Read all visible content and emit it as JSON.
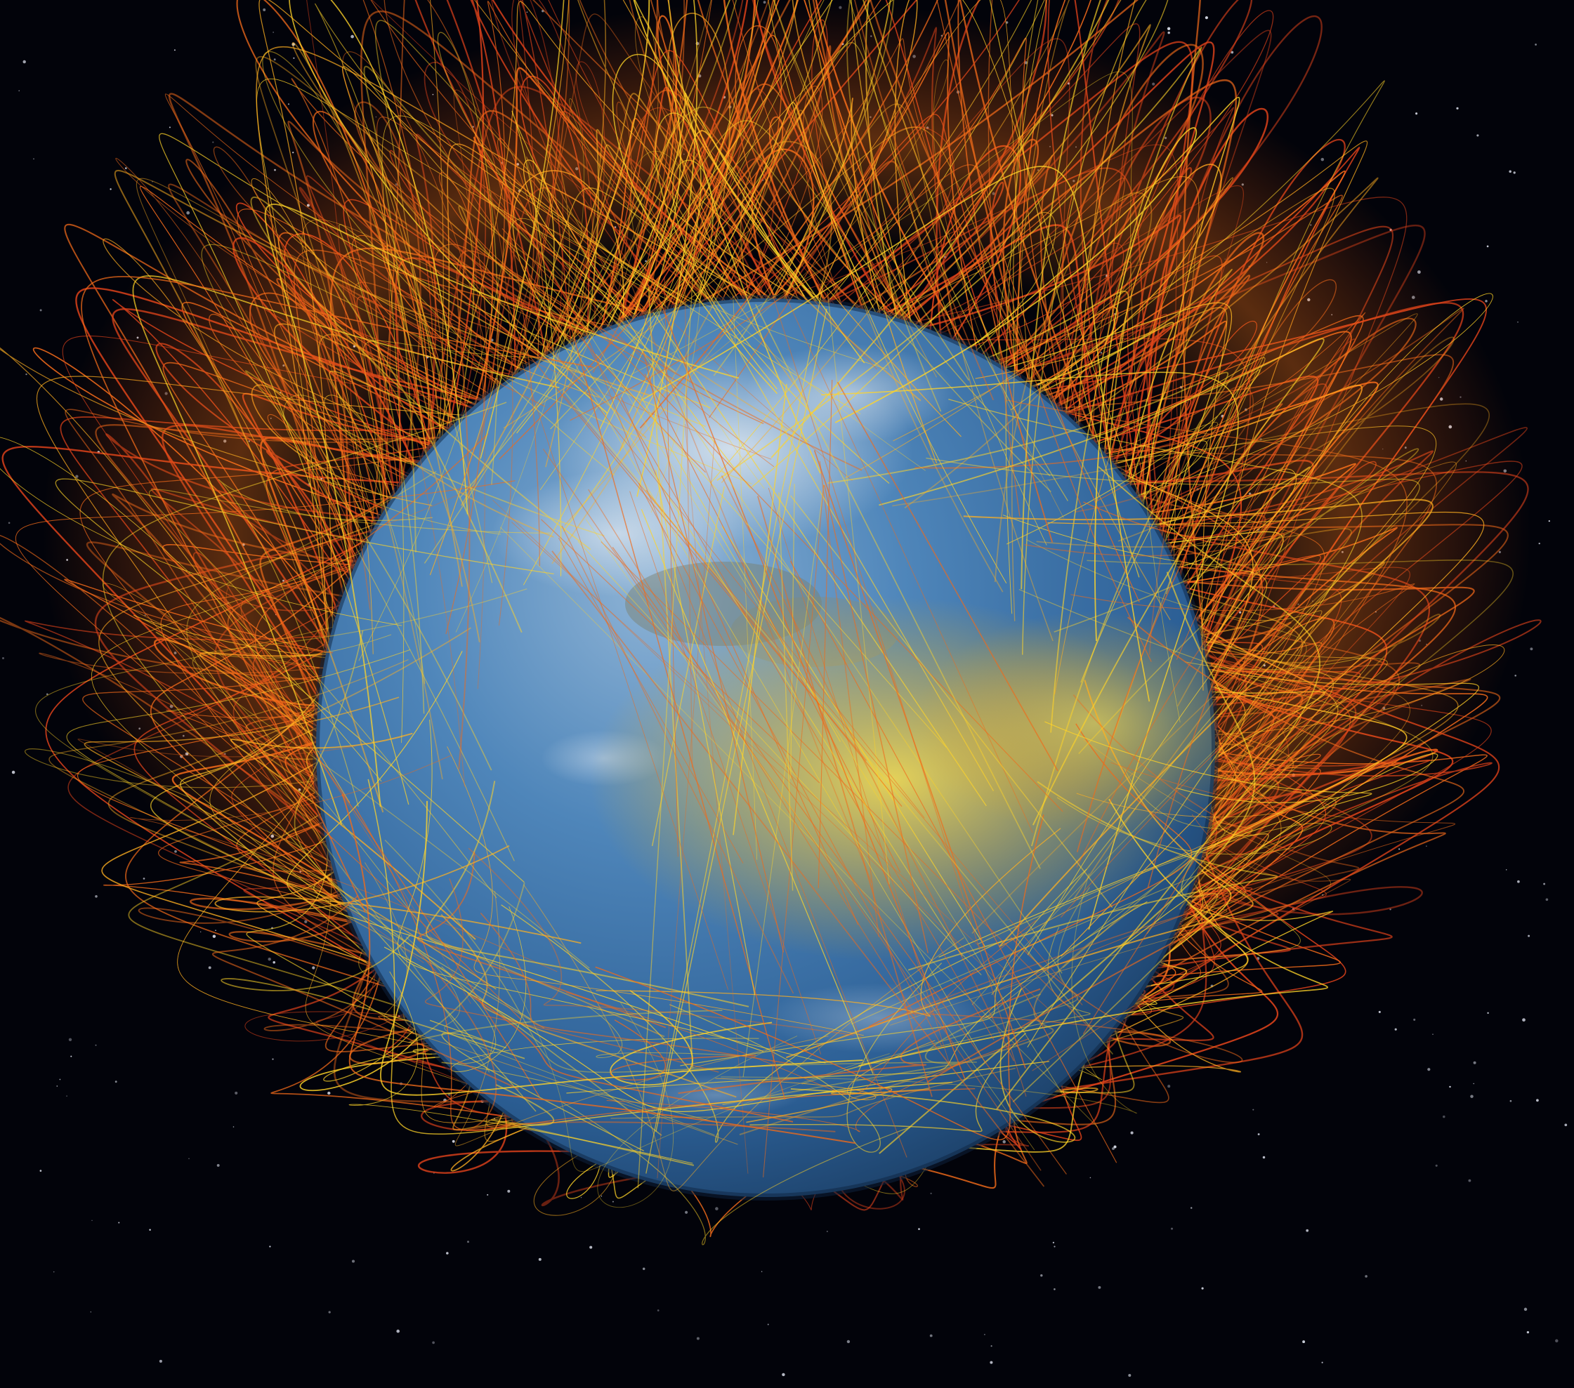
{
  "scene": {
    "subject": "earth-with-magnetic-field-lines",
    "colors": {
      "space": "#02030a",
      "star": "#d8dce8",
      "ocean_light": "#6f9fca",
      "ocean_mid": "#3b76ad",
      "ocean_dark": "#1b3d66",
      "land": "#7a7f6a",
      "cloud": "#e8ecf2",
      "field_line_orange": "#f06a1a",
      "field_line_red": "#d8401a",
      "field_line_yellow": "#ffd428",
      "field_line_gold": "#ffb020"
    }
  }
}
